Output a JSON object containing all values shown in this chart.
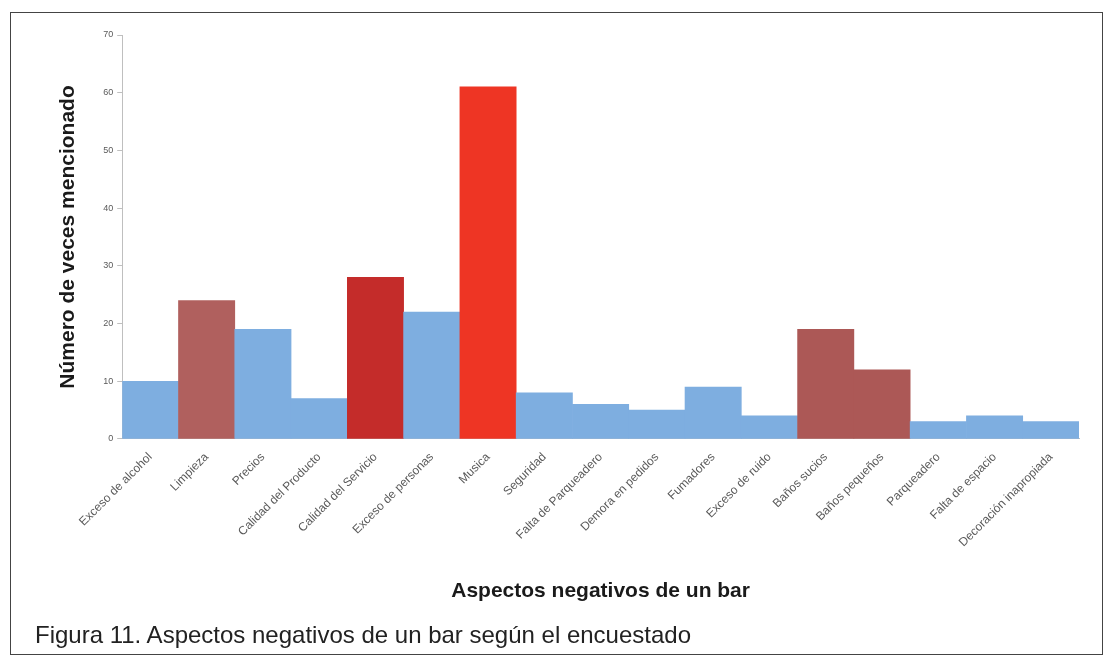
{
  "chart_data": {
    "type": "bar",
    "xlabel": "Aspectos negativos de un bar",
    "ylabel": "Número de veces mencionado",
    "categories": [
      "Exceso de alcohol",
      "Limpieza",
      "Precios",
      "Calidad del Producto",
      "Calidad del Servicio",
      "Exceso de personas",
      "Musica",
      "Seguridad",
      "Falta de Parqueadero",
      "Demora en pedidos",
      "Fumadores",
      "Exceso de ruido",
      "Baños sucios",
      "Baños pequeños",
      "Parqueadero",
      "Falta de espacio",
      "Decoración inapropiada"
    ],
    "values": [
      10,
      24,
      19,
      7,
      28,
      22,
      61,
      8,
      6,
      5,
      9,
      4,
      19,
      12,
      3,
      4,
      3
    ],
    "colors": [
      "#7eaee0",
      "#b0605e",
      "#7eaee0",
      "#7eaee0",
      "#c42c2a",
      "#7eaee0",
      "#ee3524",
      "#7eaee0",
      "#7eaee0",
      "#7eaee0",
      "#7eaee0",
      "#7eaee0",
      "#ac5856",
      "#ac5856",
      "#7eaee0",
      "#7eaee0",
      "#7eaee0"
    ],
    "ylim": [
      0,
      70
    ],
    "yticks": [
      0,
      10,
      20,
      30,
      40,
      50,
      60,
      70
    ],
    "annotations": [
      "Figura 11. Aspectos negativos de un bar según el encuestado"
    ]
  }
}
